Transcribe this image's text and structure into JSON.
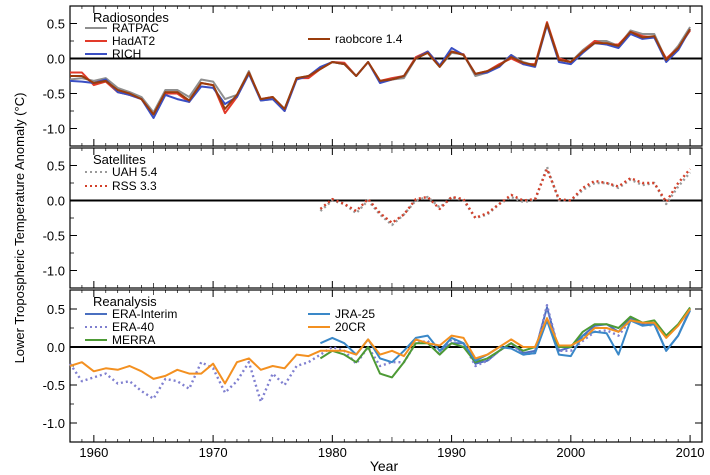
{
  "figure": {
    "ylabel": "Lower Tropospheric Temperature Anomaly (°C)",
    "xlabel": "Year"
  },
  "colors": {
    "RATPAC": "#8f8f8f",
    "HadAT2": "#e23a2a",
    "RICH": "#3a4fc4",
    "raobcore 1.4": "#9a3c0c",
    "UAH 5.4": "#9a9a9a",
    "RSS 3.3": "#d3402a",
    "ERA-Interim": "#4a6fc0",
    "ERA-40": "#8080d0",
    "MERRA": "#4d9a35",
    "JRA-25": "#3a88c8",
    "20CR": "#f39020",
    "zero_line": "#000000"
  },
  "chart_data": [
    {
      "type": "line",
      "panel_title": "Radiosondes",
      "xlim": [
        1958,
        2011
      ],
      "ylim": [
        -1.25,
        0.75
      ],
      "xticks": [
        1960,
        1970,
        1980,
        1990,
        2000,
        2010
      ],
      "xtick_labels": [
        "1960",
        "1970",
        "1980",
        "1990",
        "2000",
        "2010"
      ],
      "yticks": [
        0.5,
        0.0,
        -0.5,
        -1.0
      ],
      "ytick_labels": [
        "0.5",
        "0.0",
        "-0.5",
        "-1.0"
      ],
      "x_start": 1958,
      "series": [
        {
          "name": "RATPAC",
          "style": "solid",
          "x_start": 1958,
          "values": [
            -0.3,
            -0.28,
            -0.32,
            -0.28,
            -0.42,
            -0.48,
            -0.55,
            -0.77,
            -0.45,
            -0.45,
            -0.55,
            -0.3,
            -0.33,
            -0.58,
            -0.52,
            -0.18,
            -0.6,
            -0.58,
            -0.72,
            -0.28,
            -0.25,
            -0.15,
            -0.05,
            -0.08,
            -0.25,
            -0.05,
            -0.33,
            -0.3,
            -0.28,
            0.0,
            0.08,
            -0.12,
            0.08,
            0.06,
            -0.25,
            -0.2,
            -0.1,
            0.05,
            -0.05,
            -0.1,
            0.5,
            0.0,
            -0.05,
            0.12,
            0.25,
            0.25,
            0.18,
            0.4,
            0.35,
            0.35,
            -0.02,
            0.18,
            0.45
          ]
        },
        {
          "name": "HadAT2",
          "style": "solid",
          "x_start": 1958,
          "values": [
            -0.2,
            -0.2,
            -0.38,
            -0.33,
            -0.48,
            -0.52,
            -0.58,
            -0.8,
            -0.5,
            -0.5,
            -0.62,
            -0.35,
            -0.38,
            -0.78,
            -0.55,
            -0.2,
            -0.58,
            -0.55,
            -0.75,
            -0.28,
            -0.28,
            -0.15,
            -0.05,
            -0.06,
            -0.25,
            -0.05,
            -0.32,
            -0.28,
            -0.25,
            0.02,
            0.1,
            -0.1,
            0.1,
            0.06,
            -0.22,
            -0.18,
            -0.08,
            0.0,
            -0.08,
            -0.08,
            0.52,
            0.0,
            -0.05,
            0.1,
            0.25,
            0.2,
            0.2,
            0.38,
            0.32,
            0.3,
            0.0,
            0.15,
            0.4
          ]
        },
        {
          "name": "RICH",
          "style": "solid",
          "x_start": 1958,
          "values": [
            -0.32,
            -0.33,
            -0.35,
            -0.3,
            -0.48,
            -0.52,
            -0.58,
            -0.85,
            -0.52,
            -0.58,
            -0.62,
            -0.4,
            -0.42,
            -0.65,
            -0.55,
            -0.22,
            -0.6,
            -0.58,
            -0.75,
            -0.3,
            -0.25,
            -0.12,
            -0.05,
            -0.08,
            -0.25,
            -0.05,
            -0.35,
            -0.3,
            -0.25,
            0.0,
            0.1,
            -0.1,
            0.15,
            0.05,
            -0.22,
            -0.2,
            -0.12,
            0.05,
            -0.08,
            -0.12,
            0.48,
            -0.05,
            -0.08,
            0.08,
            0.22,
            0.2,
            0.15,
            0.35,
            0.28,
            0.3,
            -0.05,
            0.12,
            0.42
          ]
        },
        {
          "name": "raobcore 1.4",
          "style": "solid",
          "x_start": 1958,
          "values": [
            -0.25,
            -0.25,
            -0.35,
            -0.32,
            -0.45,
            -0.5,
            -0.58,
            -0.8,
            -0.48,
            -0.48,
            -0.6,
            -0.35,
            -0.38,
            -0.72,
            -0.52,
            -0.2,
            -0.58,
            -0.55,
            -0.72,
            -0.28,
            -0.25,
            -0.15,
            -0.05,
            -0.08,
            -0.25,
            -0.05,
            -0.32,
            -0.3,
            -0.25,
            0.0,
            0.08,
            -0.12,
            0.1,
            0.05,
            -0.22,
            -0.18,
            -0.1,
            0.02,
            -0.06,
            -0.1,
            0.5,
            -0.02,
            -0.05,
            0.1,
            0.22,
            0.22,
            0.18,
            0.38,
            0.3,
            0.32,
            -0.02,
            0.15,
            0.42
          ]
        }
      ]
    },
    {
      "type": "line",
      "panel_title": "Satellites",
      "xlim": [
        1958,
        2011
      ],
      "ylim": [
        -1.25,
        0.75
      ],
      "yticks": [
        0.5,
        0.0,
        -0.5,
        -1.0
      ],
      "ytick_labels": [
        "0.5",
        "0.0",
        "-0.5",
        "-1.0"
      ],
      "series": [
        {
          "name": "UAH 5.4",
          "style": "dotted",
          "x_start": 1979,
          "values": [
            -0.15,
            0.0,
            -0.05,
            -0.18,
            0.0,
            -0.2,
            -0.35,
            -0.2,
            0.0,
            0.05,
            -0.1,
            0.05,
            0.0,
            -0.25,
            -0.2,
            -0.05,
            0.05,
            -0.02,
            0.0,
            0.48,
            0.0,
            0.0,
            0.15,
            0.25,
            0.25,
            0.18,
            0.3,
            0.22,
            0.25,
            -0.05,
            0.2,
            0.4
          ]
        },
        {
          "name": "RSS 3.3",
          "style": "dotted",
          "x_start": 1979,
          "values": [
            -0.12,
            0.02,
            -0.05,
            -0.15,
            0.02,
            -0.18,
            -0.32,
            -0.2,
            0.02,
            0.05,
            -0.12,
            0.05,
            0.02,
            -0.25,
            -0.18,
            -0.05,
            0.08,
            0.0,
            0.02,
            0.45,
            0.02,
            0.0,
            0.18,
            0.28,
            0.25,
            0.2,
            0.32,
            0.25,
            0.25,
            -0.02,
            0.25,
            0.45
          ]
        }
      ]
    },
    {
      "type": "line",
      "panel_title": "Reanalysis",
      "xlim": [
        1958,
        2011
      ],
      "ylim": [
        -1.25,
        0.75
      ],
      "yticks": [
        0.5,
        0.0,
        -0.5,
        -1.0
      ],
      "ytick_labels": [
        "0.5",
        "0.0",
        "-0.5",
        "-1.0"
      ],
      "series": [
        {
          "name": "ERA-Interim",
          "style": "solid",
          "x_start": 1989,
          "values": [
            -0.05,
            0.05,
            0.05,
            -0.22,
            -0.18,
            -0.05,
            0.05,
            -0.08,
            -0.05,
            0.52,
            -0.05,
            0.0,
            0.15,
            0.28,
            0.3,
            0.2,
            0.38,
            0.3,
            0.3,
            -0.05,
            0.15,
            0.5
          ]
        },
        {
          "name": "ERA-40",
          "style": "dotted",
          "x_start": 1958,
          "values": [
            -0.22,
            -0.45,
            -0.4,
            -0.35,
            -0.48,
            -0.45,
            -0.58,
            -0.68,
            -0.42,
            -0.45,
            -0.55,
            -0.2,
            -0.28,
            -0.6,
            -0.45,
            -0.2,
            -0.72,
            -0.35,
            -0.5,
            -0.25,
            -0.2,
            -0.1,
            0.0,
            -0.05,
            -0.22,
            0.0,
            -0.25,
            -0.2,
            -0.2,
            0.05,
            0.08,
            -0.1,
            0.1,
            0.05,
            -0.25,
            -0.18,
            -0.05,
            0.05,
            -0.1,
            -0.08,
            0.55,
            -0.05,
            -0.05,
            0.08,
            0.2,
            0.22,
            0.15,
            0.35,
            0.3,
            0.28
          ]
        },
        {
          "name": "MERRA",
          "style": "solid",
          "x_start": 1979,
          "values": [
            -0.15,
            -0.05,
            -0.1,
            -0.2,
            0.0,
            -0.35,
            -0.4,
            -0.2,
            0.05,
            0.05,
            -0.1,
            0.05,
            0.0,
            -0.2,
            -0.15,
            -0.05,
            0.05,
            -0.05,
            0.0,
            0.35,
            0.0,
            0.0,
            0.2,
            0.3,
            0.3,
            0.25,
            0.4,
            0.32,
            0.35,
            0.15,
            0.3,
            0.52
          ]
        },
        {
          "name": "JRA-25",
          "style": "solid",
          "x_start": 1979,
          "values": [
            0.05,
            0.12,
            0.05,
            -0.1,
            0.1,
            -0.15,
            -0.2,
            -0.05,
            0.12,
            0.15,
            -0.05,
            0.12,
            0.05,
            -0.18,
            -0.1,
            0.0,
            -0.02,
            -0.1,
            -0.08,
            0.35,
            -0.1,
            -0.12,
            0.15,
            0.2,
            0.18,
            -0.1,
            0.35,
            0.28,
            0.3,
            -0.05,
            0.15,
            0.48
          ]
        },
        {
          "name": "20CR",
          "style": "solid",
          "x_start": 1958,
          "values": [
            -0.25,
            -0.2,
            -0.32,
            -0.28,
            -0.3,
            -0.25,
            -0.32,
            -0.42,
            -0.38,
            -0.3,
            -0.35,
            -0.35,
            -0.22,
            -0.48,
            -0.2,
            -0.15,
            -0.3,
            -0.25,
            -0.28,
            -0.1,
            -0.12,
            -0.05,
            -0.05,
            -0.05,
            -0.1,
            0.1,
            -0.1,
            -0.05,
            -0.12,
            0.1,
            0.05,
            0.02,
            0.15,
            0.12,
            -0.15,
            -0.1,
            0.0,
            0.1,
            0.0,
            0.0,
            0.38,
            0.02,
            0.02,
            0.1,
            0.25,
            0.25,
            0.2,
            0.35,
            0.32,
            0.32,
            0.12,
            0.28,
            0.5
          ]
        }
      ]
    }
  ]
}
